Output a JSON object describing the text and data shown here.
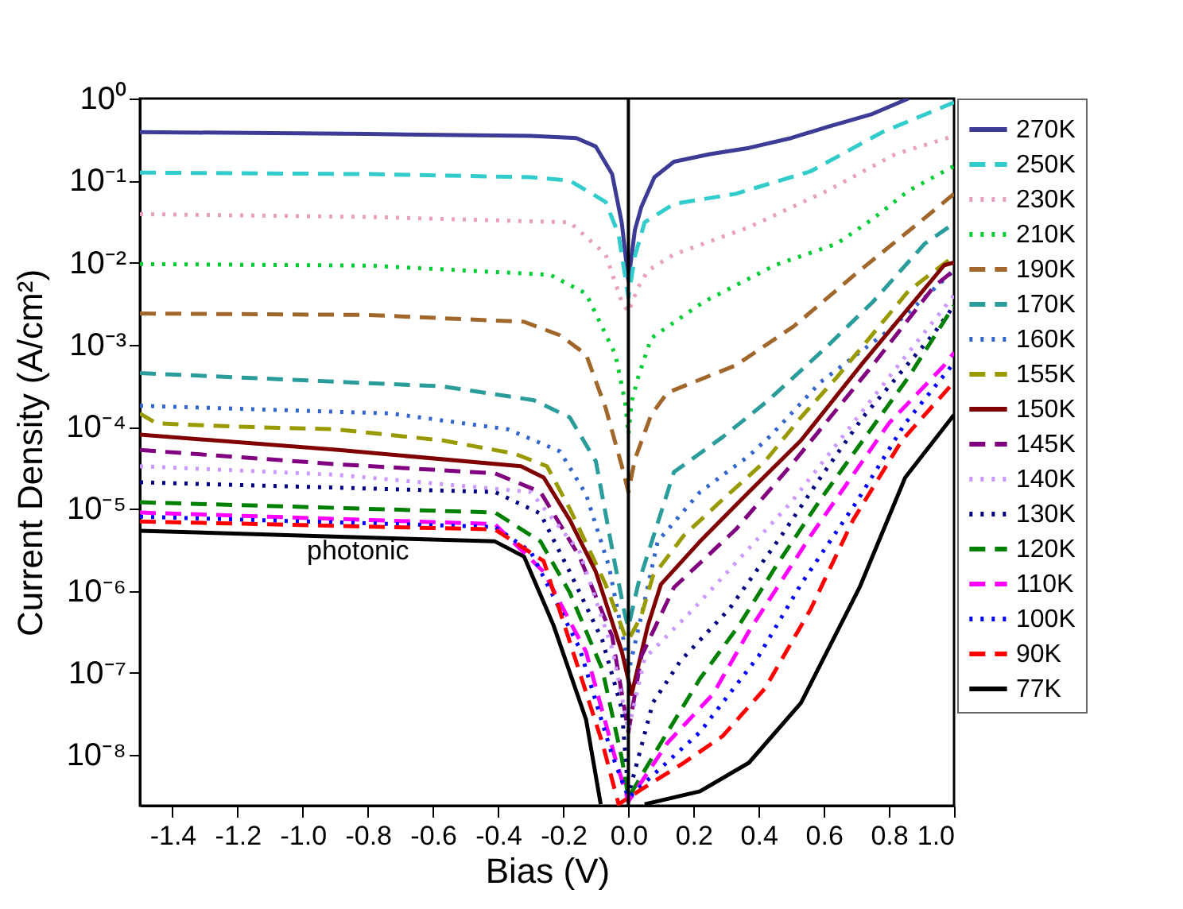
{
  "chart_data": {
    "type": "line",
    "xlabel": "Bias (V)",
    "ylabel": "Current Density (A/cm²)",
    "log": "y",
    "grid": false,
    "legend": "right",
    "xlim": [
      -1.5,
      1.0
    ],
    "xticks": [
      -1.4,
      -1.2,
      {
        "value": -1.0,
        "label": "-1.0"
      },
      -0.8,
      -0.6,
      -0.4,
      -0.2,
      {
        "value": 0,
        "label": "0.0"
      },
      0.2,
      0.4,
      0.6,
      0.8,
      {
        "value": 1.0,
        "label": "1.0"
      }
    ],
    "ylim": [
      2.4e-09,
      1
    ],
    "yticks": [
      {
        "value": 1e-08,
        "label": "10⁻⁸"
      },
      {
        "value": 1e-07,
        "label": "10⁻⁷"
      },
      {
        "value": 1e-06,
        "label": "10⁻⁶"
      },
      {
        "value": 1e-05,
        "label": "10⁻⁵"
      },
      {
        "value": 0.0001,
        "label": "10⁻⁴"
      },
      {
        "value": 0.001,
        "label": "10⁻³"
      },
      {
        "value": 0.01,
        "label": "10⁻²"
      },
      {
        "value": 0.1,
        "label": "10⁻¹"
      },
      {
        "value": 1,
        "label": "10⁰"
      }
    ],
    "ref_lines": [
      {
        "axis": "x",
        "value": 0,
        "color": "#000000"
      }
    ],
    "annotations": [
      "photonic"
    ],
    "series": [
      {
        "name": "270K",
        "color": "#3c3c96",
        "line_style": "solid",
        "x": [
          -1.5,
          -0.8,
          -0.3,
          -0.16,
          -0.1,
          -0.05,
          -0.02,
          0,
          0.02,
          0.04,
          0.08,
          0.14,
          0.25,
          0.37,
          0.5,
          0.61,
          0.75,
          0.86
        ],
        "values": [
          0.39,
          0.37,
          0.35,
          0.33,
          0.26,
          0.12,
          0.03,
          0.006,
          0.025,
          0.048,
          0.11,
          0.17,
          0.21,
          0.25,
          0.33,
          0.45,
          0.65,
          1.0
        ]
      },
      {
        "name": "250K",
        "color": "#33cccc",
        "line_style": "dashed",
        "x": [
          -1.5,
          -0.8,
          -0.3,
          -0.18,
          -0.07,
          -0.03,
          0,
          0.02,
          0.05,
          0.14,
          0.33,
          0.56,
          0.78,
          0.97,
          1.0
        ],
        "values": [
          0.125,
          0.12,
          0.11,
          0.1,
          0.055,
          0.022,
          0.0038,
          0.012,
          0.031,
          0.052,
          0.069,
          0.13,
          0.39,
          0.8,
          0.9
        ]
      },
      {
        "name": "230K",
        "color": "#e8a0c0",
        "line_style": "dotted",
        "x": [
          -1.5,
          -0.8,
          -0.18,
          -0.07,
          -0.02,
          0,
          0.03,
          0.06,
          0.14,
          0.37,
          0.61,
          0.82,
          1.0
        ],
        "values": [
          0.039,
          0.036,
          0.031,
          0.0126,
          0.0033,
          0.0025,
          0.005,
          0.008,
          0.0126,
          0.027,
          0.075,
          0.21,
          0.35
        ]
      },
      {
        "name": "210K",
        "color": "#00cc33",
        "line_style": "dotted",
        "x": [
          -1.5,
          -0.8,
          -0.24,
          -0.13,
          -0.04,
          -0.01,
          0,
          0.01,
          0.03,
          0.07,
          0.23,
          0.45,
          0.64,
          0.75,
          0.86,
          0.97,
          1.0
        ],
        "values": [
          0.0096,
          0.0092,
          0.0071,
          0.0042,
          0.00076,
          0.0002,
          8e-05,
          0.0002,
          0.0004,
          0.0012,
          0.0033,
          0.0093,
          0.017,
          0.034,
          0.075,
          0.13,
          0.15
        ]
      },
      {
        "name": "190K",
        "color": "#a0662a",
        "line_style": "dashed",
        "x": [
          -1.5,
          -0.8,
          -0.32,
          -0.21,
          -0.13,
          -0.07,
          -0.02,
          0,
          0.02,
          0.07,
          0.12,
          0.33,
          0.51,
          0.7,
          0.91,
          1.0
        ],
        "values": [
          0.0024,
          0.0023,
          0.0019,
          0.0013,
          0.00076,
          0.00017,
          3.3e-05,
          1.6e-05,
          4e-05,
          0.00014,
          0.00026,
          0.00056,
          0.0017,
          0.0074,
          0.035,
          0.069
        ]
      },
      {
        "name": "170K",
        "color": "#2a9c9c",
        "line_style": "dashed",
        "x": [
          -1.5,
          -0.57,
          -0.29,
          -0.18,
          -0.1,
          -0.04,
          -0.01,
          0,
          0.03,
          0.14,
          0.29,
          0.43,
          0.6,
          0.75,
          0.91,
          1.0
        ],
        "values": [
          0.00045,
          0.00031,
          0.00021,
          0.00013,
          3.8e-05,
          2e-06,
          5e-07,
          3.6e-07,
          1.2e-06,
          2.8e-05,
          7.5e-05,
          0.00021,
          0.00087,
          0.0033,
          0.017,
          0.03
        ]
      },
      {
        "name": "160K",
        "color": "#3366cc",
        "line_style": "dotted",
        "x": [
          -1.5,
          -0.73,
          -0.37,
          -0.21,
          -0.13,
          -0.06,
          -0.01,
          0,
          0.04,
          0.09,
          0.22,
          0.37,
          0.44,
          0.59,
          0.8,
          1.0
        ],
        "values": [
          0.00018,
          0.000145,
          9.3e-05,
          5e-05,
          1.5e-05,
          2e-06,
          2e-07,
          1e-07,
          5e-07,
          4e-06,
          1.6e-05,
          4.4e-05,
          8e-05,
          0.00035,
          0.0015,
          0.008
        ]
      },
      {
        "name": "155K",
        "color": "#999900",
        "line_style": "dashed",
        "x": [
          -1.5,
          -1.45,
          -1.2,
          -0.9,
          -0.57,
          -0.35,
          -0.25,
          -0.18,
          -0.07,
          -0.01,
          0,
          0.04,
          0.075,
          0.17,
          0.29,
          0.42,
          0.53,
          0.64,
          0.86,
          1.0
        ],
        "values": [
          0.000145,
          0.00011,
          0.0001,
          9.3e-05,
          6.8e-05,
          4.7e-05,
          3.3e-05,
          1e-05,
          1.2e-06,
          2.8e-07,
          2.5e-07,
          5e-07,
          1.5e-06,
          4.7e-06,
          1.3e-05,
          3.8e-05,
          0.00013,
          0.0004,
          0.0045,
          0.012
        ]
      },
      {
        "name": "150K",
        "color": "#800000",
        "line_style": "solid",
        "x": [
          -1.5,
          -0.89,
          -0.33,
          -0.26,
          -0.18,
          -0.1,
          -0.02,
          0.01,
          0.06,
          0.1,
          0.22,
          0.37,
          0.53,
          0.72,
          0.97,
          1.0
        ],
        "values": [
          8e-05,
          5.2e-05,
          3.3e-05,
          2.4e-05,
          7.3e-06,
          1.7e-06,
          1.8e-07,
          5.5e-08,
          3.8e-07,
          1.2e-06,
          4e-06,
          1.6e-05,
          6.8e-05,
          0.0006,
          0.0093,
          0.01
        ]
      },
      {
        "name": "145K",
        "color": "#800080",
        "line_style": "dashed",
        "x": [
          -1.5,
          -0.9,
          -0.41,
          -0.27,
          -0.15,
          -0.05,
          0,
          0.04,
          0.14,
          0.33,
          0.51,
          0.75,
          0.94,
          1.0
        ],
        "values": [
          5.2e-05,
          3.5e-05,
          2.7e-05,
          1.6e-05,
          2.6e-06,
          2.8e-07,
          1.9e-08,
          1.6e-07,
          1.1e-06,
          5.6e-06,
          3.8e-05,
          0.00056,
          0.0052,
          0.008
        ]
      },
      {
        "name": "140K",
        "color": "#cc99ff",
        "line_style": "dotted",
        "x": [
          -1.5,
          -0.9,
          -0.3,
          -0.15,
          -0.05,
          0,
          0.05,
          0.2,
          0.5,
          0.8,
          1.0
        ],
        "values": [
          3.3e-05,
          2.6e-05,
          1.6e-05,
          3e-06,
          2e-07,
          2e-08,
          1.5e-07,
          6e-07,
          1.2e-05,
          0.0004,
          0.004
        ]
      },
      {
        "name": "130K",
        "color": "#000080",
        "line_style": "dotted",
        "x": [
          -1.5,
          -0.41,
          -0.27,
          -0.18,
          -0.08,
          -0.02,
          0,
          0.075,
          0.16,
          0.31,
          0.47,
          0.59,
          0.72,
          0.94,
          1.0
        ],
        "values": [
          2.1e-05,
          1.6e-05,
          8.7e-06,
          1.7e-06,
          2.5e-07,
          3.6e-08,
          3.2e-09,
          4.3e-08,
          1.4e-07,
          6e-07,
          4.7e-06,
          2.4e-05,
          0.00013,
          0.0014,
          0.003
        ]
      },
      {
        "name": "120K",
        "color": "#008000",
        "line_style": "dashed",
        "x": [
          -1.5,
          -0.41,
          -0.27,
          -0.18,
          -0.08,
          -0.02,
          0,
          0.1,
          0.22,
          0.34,
          0.45,
          0.59,
          0.72,
          0.86,
          1.0
        ],
        "values": [
          1.2e-05,
          9e-06,
          4e-06,
          9.5e-07,
          1.1e-07,
          9e-09,
          3e-09,
          1.4e-08,
          8.5e-08,
          3.8e-07,
          1.9e-06,
          1.3e-05,
          6.8e-05,
          0.0004,
          0.003
        ]
      },
      {
        "name": "110K",
        "color": "#ff00ff",
        "line_style": "dashed",
        "x": [
          -1.5,
          -0.41,
          -0.26,
          -0.13,
          -0.04,
          0,
          0.12,
          0.26,
          0.37,
          0.56,
          0.8,
          0.97,
          1.0
        ],
        "values": [
          9e-06,
          6.5e-06,
          1.7e-06,
          1.8e-07,
          9e-09,
          2.7e-09,
          1.4e-08,
          5.5e-08,
          3.2e-07,
          4.7e-06,
          0.00011,
          0.00056,
          0.0008
        ]
      },
      {
        "name": "100K",
        "color": "#0000ff",
        "line_style": "dotted",
        "x": [
          -1.5,
          -0.41,
          -0.3,
          -0.15,
          -0.05,
          0,
          0.22,
          0.4,
          0.53,
          0.7,
          0.85,
          1.0
        ],
        "values": [
          8e-06,
          6e-06,
          3e-06,
          2e-07,
          1e-08,
          3e-09,
          1.9e-08,
          1.6e-07,
          1.2e-06,
          1.2e-05,
          0.00011,
          0.0006
        ]
      },
      {
        "name": "90K",
        "color": "#ff0000",
        "line_style": "dashed",
        "x": [
          -1.5,
          -0.41,
          -0.26,
          -0.17,
          -0.08,
          -0.03,
          0.04,
          0.17,
          0.29,
          0.42,
          0.56,
          0.69,
          0.84,
          1.0
        ],
        "values": [
          7e-06,
          5.6e-06,
          2.3e-06,
          1.8e-07,
          1.4e-08,
          2.5e-09,
          3.8e-09,
          8e-09,
          1.7e-08,
          6.5e-08,
          6e-07,
          7.3e-06,
          6.8e-05,
          0.00035
        ]
      },
      {
        "name": "77K",
        "color": "#000000",
        "line_style": "solid",
        "x": [
          -1.5,
          -0.41,
          -0.32,
          -0.23,
          -0.13,
          -0.085,
          0,
          0.05,
          0.22,
          0.37,
          0.53,
          0.71,
          0.85,
          1.0
        ],
        "values": [
          5.4e-06,
          4e-06,
          2.6e-06,
          3.8e-07,
          2.7e-08,
          2.5e-09,
          null,
          2.5e-09,
          3.6e-09,
          8e-09,
          4.3e-08,
          1.1e-06,
          2.4e-05,
          0.00014
        ]
      }
    ]
  }
}
